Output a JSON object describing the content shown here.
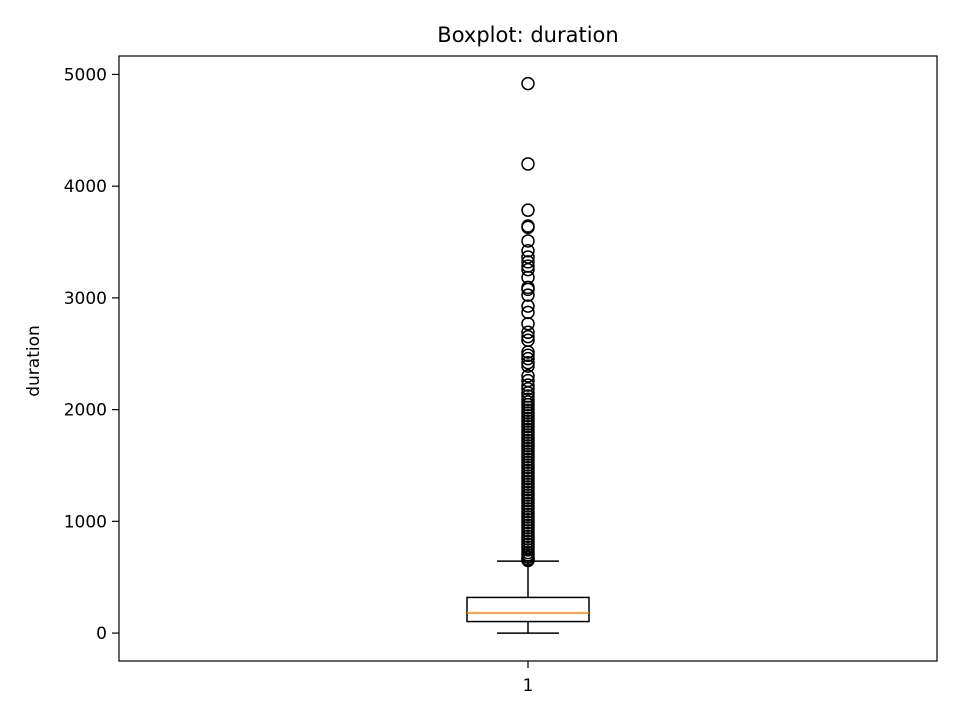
{
  "chart_data": {
    "type": "boxplot",
    "title": "Boxplot: duration",
    "xlabel": "",
    "ylabel": "duration",
    "x_ticks": [
      "1"
    ],
    "y_ticks": [
      "0",
      "1000",
      "2000",
      "3000",
      "4000",
      "5000"
    ],
    "ylim": [
      -250,
      5165
    ],
    "grid": false,
    "box": {
      "category": "1",
      "whisker_low": 0,
      "q1": 103,
      "median": 180,
      "q3": 319,
      "whisker_high": 644
    },
    "outliers": [
      4918,
      4199,
      3785,
      3643,
      3631,
      3509,
      3422,
      3366,
      3322,
      3284,
      3253,
      3183,
      3094,
      3076,
      3025,
      2926,
      2870,
      2769,
      2692,
      2653,
      2621,
      2516,
      2487,
      2456,
      2420,
      2389,
      2301,
      2260,
      2219,
      2187,
      2150,
      2122,
      2093,
      2069,
      2045,
      2020,
      1994,
      1970,
      1945,
      1920,
      1897,
      1872,
      1848,
      1822,
      1798,
      1773,
      1749,
      1724,
      1700,
      1676,
      1651,
      1627,
      1602,
      1578,
      1553,
      1529,
      1504,
      1480,
      1455,
      1431,
      1406,
      1382,
      1357,
      1333,
      1308,
      1284,
      1259,
      1235,
      1210,
      1186,
      1161,
      1137,
      1112,
      1088,
      1063,
      1039,
      1014,
      990,
      965,
      941,
      916,
      892,
      867,
      843,
      818,
      794,
      769,
      745,
      720,
      700,
      680,
      662,
      650
    ],
    "colors": {
      "median": "#ff7f0e",
      "box": "#000000",
      "outlier": "#000000"
    }
  }
}
